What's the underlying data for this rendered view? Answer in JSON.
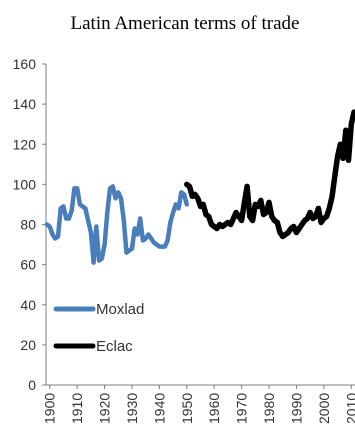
{
  "chart_data": {
    "type": "line",
    "title": "Latin American terms of trade",
    "xlabel": "",
    "ylabel": "",
    "xlim": [
      1899,
      2011
    ],
    "ylim": [
      0,
      160
    ],
    "yticks": [
      0,
      20,
      40,
      60,
      80,
      100,
      120,
      140,
      160
    ],
    "xticks": [
      1900,
      1910,
      1920,
      1930,
      1940,
      1950,
      1960,
      1970,
      1980,
      1990,
      2000,
      2010
    ],
    "legend_position": "left",
    "series": [
      {
        "name": "Moxlad",
        "color": "#4a7ebb",
        "x": [
          1899,
          1900,
          1901,
          1902,
          1903,
          1904,
          1905,
          1906,
          1907,
          1908,
          1909,
          1910,
          1911,
          1912,
          1913,
          1914,
          1915,
          1916,
          1917,
          1918,
          1919,
          1920,
          1921,
          1922,
          1923,
          1924,
          1925,
          1926,
          1927,
          1928,
          1929,
          1930,
          1931,
          1932,
          1933,
          1934,
          1935,
          1936,
          1937,
          1938,
          1939,
          1940,
          1941,
          1942,
          1943,
          1944,
          1945,
          1946,
          1947,
          1948,
          1949,
          1950
        ],
        "values": [
          80,
          79,
          75,
          73,
          74,
          88,
          89,
          83,
          83,
          87,
          98,
          98,
          90,
          89,
          88,
          82,
          76,
          61,
          79,
          62,
          63,
          70,
          86,
          98,
          99,
          93,
          96,
          93,
          82,
          66,
          67,
          68,
          78,
          75,
          83,
          72,
          73,
          75,
          73,
          71,
          70,
          69,
          69,
          69,
          72,
          81,
          86,
          90,
          88,
          96,
          95,
          90
        ]
      },
      {
        "name": "Eclac",
        "color": "#000000",
        "x": [
          1950,
          1951,
          1952,
          1953,
          1954,
          1955,
          1956,
          1957,
          1958,
          1959,
          1960,
          1961,
          1962,
          1963,
          1964,
          1965,
          1966,
          1967,
          1968,
          1969,
          1970,
          1971,
          1972,
          1973,
          1974,
          1975,
          1976,
          1977,
          1978,
          1979,
          1980,
          1981,
          1982,
          1983,
          1984,
          1985,
          1986,
          1987,
          1988,
          1989,
          1990,
          1991,
          1992,
          1993,
          1994,
          1995,
          1996,
          1997,
          1998,
          1999,
          2000,
          2001,
          2002,
          2003,
          2004,
          2005,
          2006,
          2007,
          2008,
          2009,
          2010,
          2011
        ],
        "values": [
          100,
          99,
          94,
          95,
          93,
          89,
          90,
          85,
          84,
          80,
          79,
          78,
          80,
          79,
          80,
          81,
          80,
          83,
          86,
          84,
          82,
          91,
          99,
          84,
          82,
          90,
          89,
          92,
          85,
          86,
          91,
          84,
          82,
          81,
          76,
          74,
          75,
          76,
          78,
          79,
          76,
          78,
          80,
          82,
          83,
          86,
          83,
          84,
          88,
          81,
          83,
          84,
          88,
          94,
          104,
          114,
          120,
          113,
          127,
          112,
          130,
          136
        ]
      }
    ]
  }
}
